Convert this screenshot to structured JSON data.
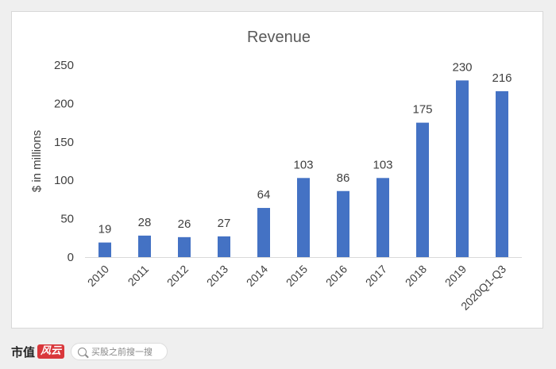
{
  "chart_data": {
    "type": "bar",
    "title": "Revenue",
    "xlabel": "",
    "ylabel": "$ in millions",
    "categories": [
      "2010",
      "2011",
      "2012",
      "2013",
      "2014",
      "2015",
      "2016",
      "2017",
      "2018",
      "2019",
      "2020Q1-Q3"
    ],
    "values": [
      19,
      28,
      26,
      27,
      64,
      103,
      86,
      103,
      175,
      230,
      216
    ],
    "ylim": [
      0,
      250
    ],
    "yticks": [
      0,
      50,
      100,
      150,
      200,
      250
    ],
    "grid": false,
    "legend": "none",
    "bar_color": "#4472c4"
  },
  "footer": {
    "brand": "市值",
    "brand_mark": "风云",
    "search_placeholder": "买股之前搜一搜"
  }
}
